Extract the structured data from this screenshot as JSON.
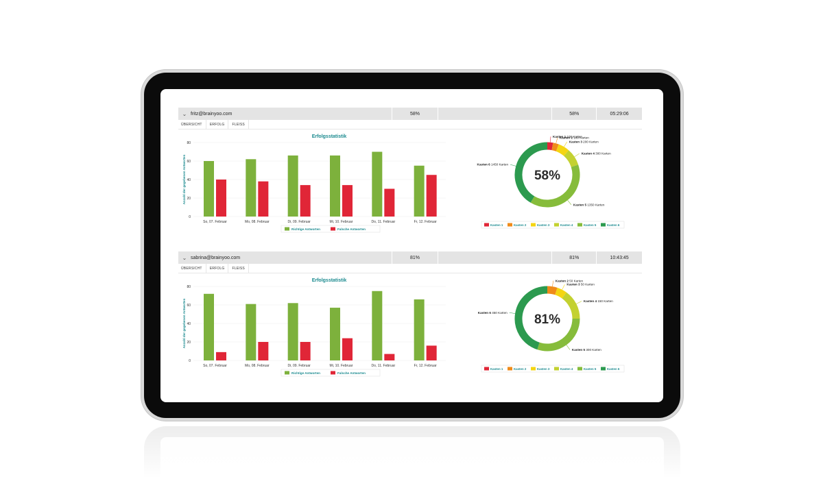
{
  "colors": {
    "correct": "#7db13c",
    "wrong": "#e02637",
    "title": "#1b8a8f",
    "kasten": [
      "#e02637",
      "#ef8b1a",
      "#f4d512",
      "#c3d130",
      "#86bc3b",
      "#2c9a4f"
    ]
  },
  "users": [
    {
      "email": "fritz@brainyoo.com",
      "pct": "58%",
      "pct2": "58%",
      "time": "05:29:06",
      "tabs": [
        "ÜBERSICHT",
        "ERFOLG",
        "FLEISS"
      ],
      "chart_data": {
        "type": "bar",
        "title": "Erfolgsstatistik",
        "ylabel": "Anzahl der gegebenen Antworten",
        "categories": [
          "So, 07. Februar",
          "Mo, 08. Februar",
          "Di, 09. Februar",
          "Mi, 10. Februar",
          "Do, 11. Februar",
          "Fr, 12. Februar"
        ],
        "series": [
          {
            "name": "Richtige Antworten",
            "values": [
              60,
              62,
              66,
              66,
              70,
              55
            ]
          },
          {
            "name": "Falsche Antworten",
            "values": [
              40,
              38,
              34,
              34,
              30,
              45
            ]
          }
        ],
        "yticks": [
          "0",
          "20",
          "40",
          "60",
          "80"
        ],
        "ylim": [
          0,
          80
        ],
        "legend": "bottom"
      },
      "donut": {
        "center": "58%",
        "segments": [
          {
            "name": "Kasten 1",
            "label": "Kasten 1",
            "detail": "100 Karten",
            "value": 100
          },
          {
            "name": "Kasten 2",
            "label": "Kasten 2",
            "detail": "100 Karten",
            "value": 100
          },
          {
            "name": "Kasten 3",
            "label": "Kasten 3",
            "detail": "200 Karten",
            "value": 200
          },
          {
            "name": "Kasten 4",
            "label": "Kasten 4",
            "detail": "300 Karten",
            "value": 300
          },
          {
            "name": "Kasten 5",
            "label": "Kasten 5",
            "detail": "1350 Karten",
            "value": 1350
          },
          {
            "name": "Kasten 6",
            "label": "Kasten 6",
            "detail": "1450 Karten",
            "value": 1450
          }
        ],
        "legend": [
          "Kasten 1",
          "Kasten 2",
          "Kasten 3",
          "Kasten 4",
          "Kasten 5",
          "Kasten 6"
        ]
      }
    },
    {
      "email": "sabrina@brainyoo.com",
      "pct": "81%",
      "pct2": "81%",
      "time": "10:43:45",
      "tabs": [
        "ÜBERSICHT",
        "ERFOLG",
        "FLEISS"
      ],
      "chart_data": {
        "type": "bar",
        "title": "Erfolgsstatistik",
        "ylabel": "Anzahl der gegebenen Antworten",
        "categories": [
          "So, 07. Februar",
          "Mo, 08. Februar",
          "Di, 09. Februar",
          "Mi, 10. Februar",
          "Do, 11. Februar",
          "Fr, 12. Februar"
        ],
        "series": [
          {
            "name": "Richtige Antworten",
            "values": [
              72,
              61,
              62,
              57,
              75,
              66
            ]
          },
          {
            "name": "Falsche Antworten",
            "values": [
              9,
              20,
              20,
              24,
              7,
              16
            ]
          }
        ],
        "yticks": [
          "0",
          "20",
          "40",
          "60",
          "80"
        ],
        "ylim": [
          0,
          80
        ],
        "legend": "bottom"
      },
      "donut": {
        "center": "81%",
        "segments": [
          {
            "name": "Kasten 2",
            "label": "Kasten 2",
            "detail": "50 Karten",
            "value": 50
          },
          {
            "name": "Kasten 3",
            "label": "Kasten 3",
            "detail": "50 Karten",
            "value": 50
          },
          {
            "name": "Kasten 4",
            "label": "Kasten 4",
            "detail": "150 Karten",
            "value": 150
          },
          {
            "name": "Kasten 5",
            "label": "Kasten 5",
            "detail": "300 Karten",
            "value": 300
          },
          {
            "name": "Kasten 6",
            "label": "Kasten 6",
            "detail": "450 Karten",
            "value": 450
          }
        ],
        "legend": [
          "Kasten 1",
          "Kasten 2",
          "Kasten 3",
          "Kasten 4",
          "Kasten 5",
          "Kasten 6"
        ]
      }
    }
  ]
}
